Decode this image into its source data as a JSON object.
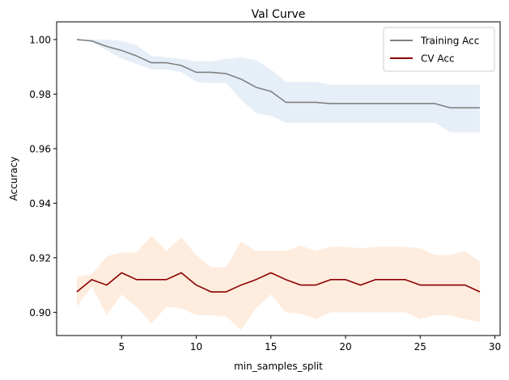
{
  "chart_data": {
    "type": "line",
    "title": "Val Curve",
    "xlabel": "min_samples_split",
    "ylabel": "Accuracy",
    "xlim": [
      0.65,
      30.35
    ],
    "ylim": [
      0.8915,
      1.0065
    ],
    "xticks": [
      5,
      10,
      15,
      20,
      25,
      30
    ],
    "yticks": [
      0.9,
      0.92,
      0.94,
      0.96,
      0.98,
      1.0
    ],
    "xtick_labels": [
      "5",
      "10",
      "15",
      "20",
      "25",
      "30"
    ],
    "ytick_labels": [
      "0.90",
      "0.92",
      "0.94",
      "0.96",
      "0.98",
      "1.00"
    ],
    "grid": false,
    "legend_position": "top-right",
    "x": [
      2,
      3,
      4,
      5,
      6,
      7,
      8,
      9,
      10,
      11,
      12,
      13,
      14,
      15,
      16,
      17,
      18,
      19,
      20,
      21,
      22,
      23,
      24,
      25,
      26,
      27,
      28,
      29
    ],
    "series": [
      {
        "name": "Training Acc",
        "color": "#808080",
        "band_color": "#dce8f5",
        "values": [
          1.0,
          0.9995,
          0.9975,
          0.996,
          0.994,
          0.9915,
          0.9915,
          0.9905,
          0.988,
          0.988,
          0.9875,
          0.9855,
          0.9825,
          0.981,
          0.977,
          0.977,
          0.977,
          0.9765,
          0.9765,
          0.9765,
          0.9765,
          0.9765,
          0.9765,
          0.9765,
          0.9765,
          0.975,
          0.975,
          0.975
        ],
        "upper": [
          1.0,
          1.0,
          1.0,
          0.9995,
          0.998,
          0.994,
          0.9935,
          0.993,
          0.992,
          0.992,
          0.993,
          0.9935,
          0.9925,
          0.989,
          0.9845,
          0.9845,
          0.9845,
          0.9835,
          0.9835,
          0.9835,
          0.9835,
          0.9835,
          0.9835,
          0.9835,
          0.9835,
          0.9835,
          0.9835,
          0.9835
        ],
        "lower": [
          1.0,
          0.999,
          0.996,
          0.993,
          0.991,
          0.989,
          0.989,
          0.988,
          0.9845,
          0.984,
          0.984,
          0.978,
          0.973,
          0.972,
          0.9695,
          0.9695,
          0.9695,
          0.9695,
          0.9695,
          0.9695,
          0.9695,
          0.9695,
          0.9695,
          0.9695,
          0.9695,
          0.966,
          0.966,
          0.966
        ]
      },
      {
        "name": "CV Acc",
        "color": "#8b0000",
        "band_color": "#fde4d0",
        "values": [
          0.9075,
          0.912,
          0.91,
          0.9145,
          0.912,
          0.912,
          0.912,
          0.9145,
          0.91,
          0.9075,
          0.9075,
          0.91,
          0.912,
          0.9145,
          0.912,
          0.91,
          0.91,
          0.912,
          0.912,
          0.91,
          0.912,
          0.912,
          0.912,
          0.91,
          0.91,
          0.91,
          0.91,
          0.9075
        ],
        "upper": [
          0.913,
          0.914,
          0.9205,
          0.922,
          0.922,
          0.928,
          0.9225,
          0.9275,
          0.921,
          0.9165,
          0.9165,
          0.926,
          0.9225,
          0.9225,
          0.9225,
          0.9245,
          0.9225,
          0.924,
          0.924,
          0.9235,
          0.924,
          0.924,
          0.924,
          0.9235,
          0.921,
          0.921,
          0.9225,
          0.9185
        ],
        "lower": [
          0.902,
          0.9095,
          0.899,
          0.9065,
          0.902,
          0.896,
          0.902,
          0.9015,
          0.899,
          0.899,
          0.8985,
          0.8935,
          0.9015,
          0.9065,
          0.9,
          0.8995,
          0.8975,
          0.9,
          0.9,
          0.9,
          0.9,
          0.9,
          0.9,
          0.8975,
          0.899,
          0.899,
          0.8975,
          0.8965
        ]
      }
    ]
  }
}
